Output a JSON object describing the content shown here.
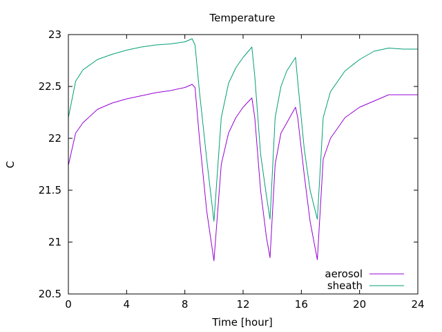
{
  "chart_data": {
    "type": "line",
    "title": "Temperature",
    "xlabel": "Time [hour]",
    "ylabel": "C",
    "xlim": [
      0,
      24
    ],
    "ylim": [
      20.5,
      23
    ],
    "xticks": [
      0,
      4,
      8,
      12,
      16,
      20,
      24
    ],
    "yticks": [
      20.5,
      21,
      21.5,
      22,
      22.5,
      23
    ],
    "ytick_labels": [
      "20.5",
      "21",
      "21.5",
      "22",
      "22.5",
      "23"
    ],
    "grid": false,
    "legend_position": "bottom-right",
    "series": [
      {
        "name": "aerosol",
        "color": "#9400d3",
        "x": [
          0,
          0.5,
          1,
          2,
          3,
          4,
          5,
          6,
          7,
          8,
          8.5,
          8.7,
          9,
          9.5,
          10,
          10.5,
          11,
          11.5,
          12,
          12.6,
          12.8,
          13.2,
          13.6,
          13.85,
          14.2,
          14.6,
          15,
          15.6,
          15.75,
          16.2,
          16.6,
          17.1,
          17.5,
          18,
          19,
          20,
          21,
          22,
          23,
          24
        ],
        "y": [
          21.74,
          22.05,
          22.15,
          22.28,
          22.34,
          22.38,
          22.41,
          22.44,
          22.46,
          22.49,
          22.52,
          22.49,
          22.0,
          21.3,
          20.82,
          21.75,
          22.05,
          22.2,
          22.3,
          22.39,
          22.2,
          21.5,
          21.05,
          20.85,
          21.75,
          22.05,
          22.15,
          22.3,
          22.2,
          21.65,
          21.2,
          20.83,
          21.8,
          22.0,
          22.2,
          22.3,
          22.36,
          22.42,
          22.42,
          22.42
        ]
      },
      {
        "name": "sheath",
        "color": "#009e73",
        "x": [
          0,
          0.5,
          1,
          2,
          3,
          4,
          5,
          6,
          7,
          8,
          8.5,
          8.7,
          9,
          9.5,
          10,
          10.5,
          11,
          11.5,
          12,
          12.6,
          12.8,
          13.2,
          13.6,
          13.85,
          14.2,
          14.6,
          15,
          15.6,
          15.75,
          16.2,
          16.6,
          17.1,
          17.5,
          18,
          19,
          20,
          21,
          22,
          23,
          24
        ],
        "y": [
          22.2,
          22.55,
          22.66,
          22.76,
          22.81,
          22.85,
          22.88,
          22.9,
          22.91,
          22.93,
          22.96,
          22.9,
          22.45,
          21.8,
          21.2,
          22.2,
          22.53,
          22.68,
          22.78,
          22.88,
          22.6,
          21.85,
          21.45,
          21.22,
          22.2,
          22.5,
          22.65,
          22.78,
          22.55,
          21.9,
          21.5,
          21.22,
          22.2,
          22.45,
          22.65,
          22.76,
          22.84,
          22.87,
          22.86,
          22.86
        ]
      }
    ]
  }
}
